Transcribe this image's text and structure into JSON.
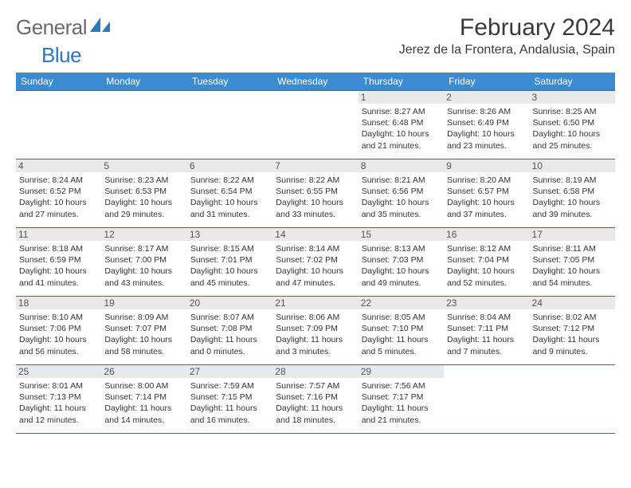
{
  "brand": {
    "part1": "General",
    "part2": "Blue"
  },
  "colors": {
    "header_bg": "#3b8bd0",
    "header_fg": "#ffffff",
    "border": "#3b6a95",
    "daynum_bg": "#e9e9e9",
    "logo_gray": "#6a6a6a",
    "logo_blue": "#2f77b6"
  },
  "title": "February 2024",
  "location": "Jerez de la Frontera, Andalusia, Spain",
  "weekdays": [
    "Sunday",
    "Monday",
    "Tuesday",
    "Wednesday",
    "Thursday",
    "Friday",
    "Saturday"
  ],
  "weeks": [
    [
      null,
      null,
      null,
      null,
      {
        "n": "1",
        "sr": "Sunrise: 8:27 AM",
        "ss": "Sunset: 6:48 PM",
        "dl1": "Daylight: 10 hours",
        "dl2": "and 21 minutes."
      },
      {
        "n": "2",
        "sr": "Sunrise: 8:26 AM",
        "ss": "Sunset: 6:49 PM",
        "dl1": "Daylight: 10 hours",
        "dl2": "and 23 minutes."
      },
      {
        "n": "3",
        "sr": "Sunrise: 8:25 AM",
        "ss": "Sunset: 6:50 PM",
        "dl1": "Daylight: 10 hours",
        "dl2": "and 25 minutes."
      }
    ],
    [
      {
        "n": "4",
        "sr": "Sunrise: 8:24 AM",
        "ss": "Sunset: 6:52 PM",
        "dl1": "Daylight: 10 hours",
        "dl2": "and 27 minutes."
      },
      {
        "n": "5",
        "sr": "Sunrise: 8:23 AM",
        "ss": "Sunset: 6:53 PM",
        "dl1": "Daylight: 10 hours",
        "dl2": "and 29 minutes."
      },
      {
        "n": "6",
        "sr": "Sunrise: 8:22 AM",
        "ss": "Sunset: 6:54 PM",
        "dl1": "Daylight: 10 hours",
        "dl2": "and 31 minutes."
      },
      {
        "n": "7",
        "sr": "Sunrise: 8:22 AM",
        "ss": "Sunset: 6:55 PM",
        "dl1": "Daylight: 10 hours",
        "dl2": "and 33 minutes."
      },
      {
        "n": "8",
        "sr": "Sunrise: 8:21 AM",
        "ss": "Sunset: 6:56 PM",
        "dl1": "Daylight: 10 hours",
        "dl2": "and 35 minutes."
      },
      {
        "n": "9",
        "sr": "Sunrise: 8:20 AM",
        "ss": "Sunset: 6:57 PM",
        "dl1": "Daylight: 10 hours",
        "dl2": "and 37 minutes."
      },
      {
        "n": "10",
        "sr": "Sunrise: 8:19 AM",
        "ss": "Sunset: 6:58 PM",
        "dl1": "Daylight: 10 hours",
        "dl2": "and 39 minutes."
      }
    ],
    [
      {
        "n": "11",
        "sr": "Sunrise: 8:18 AM",
        "ss": "Sunset: 6:59 PM",
        "dl1": "Daylight: 10 hours",
        "dl2": "and 41 minutes."
      },
      {
        "n": "12",
        "sr": "Sunrise: 8:17 AM",
        "ss": "Sunset: 7:00 PM",
        "dl1": "Daylight: 10 hours",
        "dl2": "and 43 minutes."
      },
      {
        "n": "13",
        "sr": "Sunrise: 8:15 AM",
        "ss": "Sunset: 7:01 PM",
        "dl1": "Daylight: 10 hours",
        "dl2": "and 45 minutes."
      },
      {
        "n": "14",
        "sr": "Sunrise: 8:14 AM",
        "ss": "Sunset: 7:02 PM",
        "dl1": "Daylight: 10 hours",
        "dl2": "and 47 minutes."
      },
      {
        "n": "15",
        "sr": "Sunrise: 8:13 AM",
        "ss": "Sunset: 7:03 PM",
        "dl1": "Daylight: 10 hours",
        "dl2": "and 49 minutes."
      },
      {
        "n": "16",
        "sr": "Sunrise: 8:12 AM",
        "ss": "Sunset: 7:04 PM",
        "dl1": "Daylight: 10 hours",
        "dl2": "and 52 minutes."
      },
      {
        "n": "17",
        "sr": "Sunrise: 8:11 AM",
        "ss": "Sunset: 7:05 PM",
        "dl1": "Daylight: 10 hours",
        "dl2": "and 54 minutes."
      }
    ],
    [
      {
        "n": "18",
        "sr": "Sunrise: 8:10 AM",
        "ss": "Sunset: 7:06 PM",
        "dl1": "Daylight: 10 hours",
        "dl2": "and 56 minutes."
      },
      {
        "n": "19",
        "sr": "Sunrise: 8:09 AM",
        "ss": "Sunset: 7:07 PM",
        "dl1": "Daylight: 10 hours",
        "dl2": "and 58 minutes."
      },
      {
        "n": "20",
        "sr": "Sunrise: 8:07 AM",
        "ss": "Sunset: 7:08 PM",
        "dl1": "Daylight: 11 hours",
        "dl2": "and 0 minutes."
      },
      {
        "n": "21",
        "sr": "Sunrise: 8:06 AM",
        "ss": "Sunset: 7:09 PM",
        "dl1": "Daylight: 11 hours",
        "dl2": "and 3 minutes."
      },
      {
        "n": "22",
        "sr": "Sunrise: 8:05 AM",
        "ss": "Sunset: 7:10 PM",
        "dl1": "Daylight: 11 hours",
        "dl2": "and 5 minutes."
      },
      {
        "n": "23",
        "sr": "Sunrise: 8:04 AM",
        "ss": "Sunset: 7:11 PM",
        "dl1": "Daylight: 11 hours",
        "dl2": "and 7 minutes."
      },
      {
        "n": "24",
        "sr": "Sunrise: 8:02 AM",
        "ss": "Sunset: 7:12 PM",
        "dl1": "Daylight: 11 hours",
        "dl2": "and 9 minutes."
      }
    ],
    [
      {
        "n": "25",
        "sr": "Sunrise: 8:01 AM",
        "ss": "Sunset: 7:13 PM",
        "dl1": "Daylight: 11 hours",
        "dl2": "and 12 minutes."
      },
      {
        "n": "26",
        "sr": "Sunrise: 8:00 AM",
        "ss": "Sunset: 7:14 PM",
        "dl1": "Daylight: 11 hours",
        "dl2": "and 14 minutes."
      },
      {
        "n": "27",
        "sr": "Sunrise: 7:59 AM",
        "ss": "Sunset: 7:15 PM",
        "dl1": "Daylight: 11 hours",
        "dl2": "and 16 minutes."
      },
      {
        "n": "28",
        "sr": "Sunrise: 7:57 AM",
        "ss": "Sunset: 7:16 PM",
        "dl1": "Daylight: 11 hours",
        "dl2": "and 18 minutes."
      },
      {
        "n": "29",
        "sr": "Sunrise: 7:56 AM",
        "ss": "Sunset: 7:17 PM",
        "dl1": "Daylight: 11 hours",
        "dl2": "and 21 minutes."
      },
      null,
      null
    ]
  ]
}
